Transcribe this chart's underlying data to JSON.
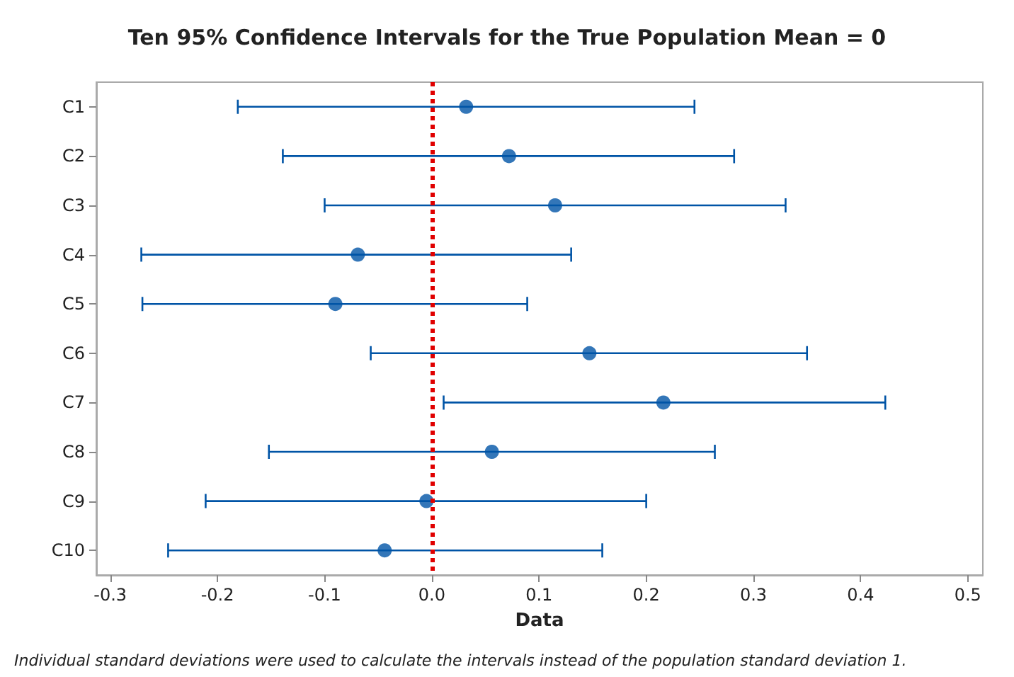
{
  "chart_data": {
    "type": "scatter",
    "orientation": "horizontal",
    "title": "Ten 95% Confidence Intervals for the True Population Mean = 0",
    "xlabel": "Data",
    "categories": [
      "C1",
      "C2",
      "C3",
      "C4",
      "C5",
      "C6",
      "C7",
      "C8",
      "C9",
      "C10"
    ],
    "series": [
      {
        "color": "#0054a6",
        "values": [
          0.032,
          0.072,
          0.115,
          -0.069,
          -0.09,
          0.147,
          0.216,
          0.056,
          -0.005,
          -0.044
        ],
        "errors": [
          [
            -0.181,
            0.245
          ],
          [
            -0.139,
            0.282
          ],
          [
            -0.1,
            0.33
          ],
          [
            -0.271,
            0.13
          ],
          [
            -0.27,
            0.089
          ],
          [
            -0.057,
            0.35
          ],
          [
            0.011,
            0.423
          ],
          [
            -0.152,
            0.264
          ],
          [
            -0.211,
            0.2
          ],
          [
            -0.246,
            0.159
          ]
        ]
      }
    ],
    "xlim": [
      -0.313,
      0.514
    ],
    "xticks": [
      -0.3,
      -0.2,
      -0.1,
      {
        "value": 0,
        "label": "0.0"
      },
      0.1,
      0.2,
      0.3,
      0.4,
      0.5
    ],
    "ref_lines": [
      {
        "axis": "x",
        "value": 0,
        "color": "#e00000",
        "line_style": "dotted"
      }
    ],
    "grid": false,
    "marker": "circle",
    "annotations": [
      "Individual standard deviations were used to calculate the intervals instead of the population standard deviation 1."
    ]
  }
}
